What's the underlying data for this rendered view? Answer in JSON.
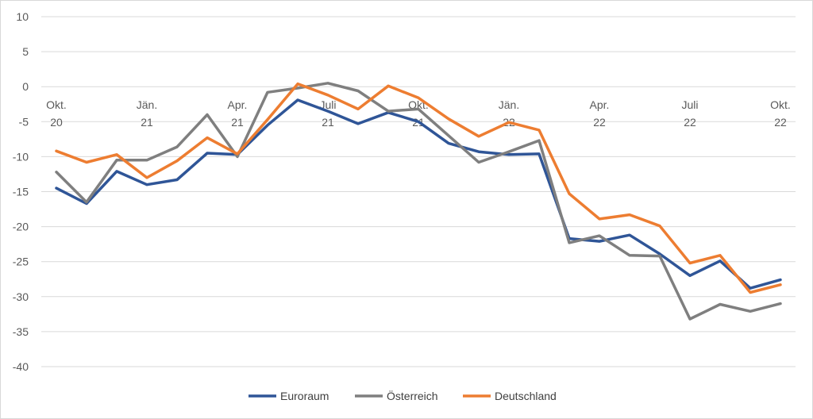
{
  "chart_data": {
    "type": "line",
    "title": "",
    "xlabel": "",
    "ylabel": "",
    "ylim": [
      -40,
      10
    ],
    "yticks": [
      10,
      5,
      0,
      -5,
      -10,
      -15,
      -20,
      -25,
      -30,
      -35,
      -40
    ],
    "grid": "horizontal",
    "legend_position": "bottom",
    "x_tick_labels": [
      {
        "index": 0,
        "line1": "Okt.",
        "line2": "20"
      },
      {
        "index": 3,
        "line1": "Jän.",
        "line2": "21"
      },
      {
        "index": 6,
        "line1": "Apr.",
        "line2": "21"
      },
      {
        "index": 9,
        "line1": "Juli",
        "line2": "21"
      },
      {
        "index": 12,
        "line1": "Okt.",
        "line2": "21"
      },
      {
        "index": 15,
        "line1": "Jän.",
        "line2": "22"
      },
      {
        "index": 18,
        "line1": "Apr.",
        "line2": "22"
      },
      {
        "index": 21,
        "line1": "Juli",
        "line2": "22"
      },
      {
        "index": 24,
        "line1": "Okt.",
        "line2": "22"
      }
    ],
    "x_count": 25,
    "series": [
      {
        "name": "Euroraum",
        "color": "#2f5597",
        "values": [
          -14.5,
          -16.7,
          -12.1,
          -14.0,
          -13.3,
          -9.5,
          -9.7,
          -5.5,
          -1.9,
          -3.5,
          -5.3,
          -3.7,
          -5.0,
          -8.1,
          -9.3,
          -9.7,
          -9.6,
          -21.7,
          -22.1,
          -21.2,
          -23.9,
          -27.0,
          -24.9,
          -28.8,
          -27.6
        ]
      },
      {
        "name": "Österreich",
        "color": "#7f7f7f",
        "values": [
          -12.2,
          -16.5,
          -10.5,
          -10.5,
          -8.6,
          -4.0,
          -10.0,
          -0.8,
          -0.2,
          0.5,
          -0.6,
          -3.5,
          -3.2,
          -7.0,
          -10.8,
          -9.3,
          -7.7,
          -22.3,
          -21.3,
          -24.1,
          -24.2,
          -33.2,
          -31.1,
          -32.1,
          -31.0
        ]
      },
      {
        "name": "Deutschland",
        "color": "#ed7d31",
        "values": [
          -9.2,
          -10.8,
          -9.7,
          -13.0,
          -10.6,
          -7.3,
          -9.6,
          -4.7,
          0.4,
          -1.2,
          -3.2,
          0.1,
          -1.6,
          -4.6,
          -7.1,
          -5.1,
          -6.2,
          -15.3,
          -18.9,
          -18.3,
          -19.9,
          -25.2,
          -24.1,
          -29.4,
          -28.3
        ]
      }
    ]
  }
}
